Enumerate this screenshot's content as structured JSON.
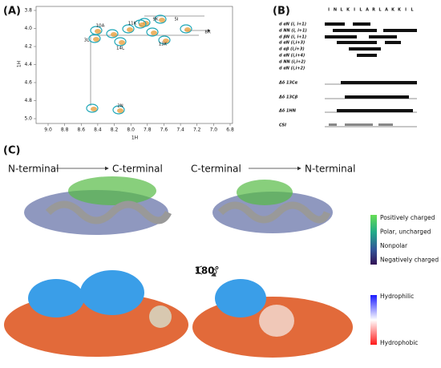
{
  "panel_a": {
    "label": "(A)",
    "x_axis_label": "1H",
    "y_axis_label": "1H",
    "xticks": [
      "9.0",
      "8.8",
      "8.6",
      "8.4",
      "8.2",
      "8.0",
      "7.8",
      "7.6",
      "7.4",
      "7.2",
      "7.0",
      "6.8"
    ],
    "yticks": [
      "3.8",
      "4.0",
      "4.2",
      "4.4",
      "4.6",
      "4.8",
      "5.0"
    ],
    "peaks": [
      "10A",
      "11K",
      "9K",
      "5I",
      "8R",
      "3L",
      "14L",
      "13K",
      "2N"
    ]
  },
  "panel_b": {
    "label": "(B)",
    "sequence": [
      "I",
      "N",
      "L",
      "K",
      "I",
      "L",
      "A",
      "R",
      "L",
      "A",
      "K",
      "K",
      "I",
      "L"
    ],
    "rows": [
      "d αN (i, i+1)",
      "d NN (i, i+1)",
      "d βN (i, i+1)",
      "d αN (i,i+3)",
      "d αβ (i,i+3)",
      "d αN (i,i+4)",
      "d NN (i,i+2)",
      "d αN (i,i+2)",
      "Δδ 13Cα",
      "Δδ 13Cβ",
      "Δδ 1HN",
      "CSI"
    ]
  },
  "panel_c": {
    "label": "(C)",
    "left_start": "N-terminal",
    "left_end": "C-terminal",
    "right_start": "C-terminal",
    "right_end": "N-terminal",
    "rotation": "180°",
    "charge_legend": [
      "Positively charged",
      "Polar, uncharged",
      "Nonpolar",
      "Negatively charged"
    ],
    "hydro_legend": [
      "Hydrophilic",
      "Hydrophobic"
    ]
  }
}
